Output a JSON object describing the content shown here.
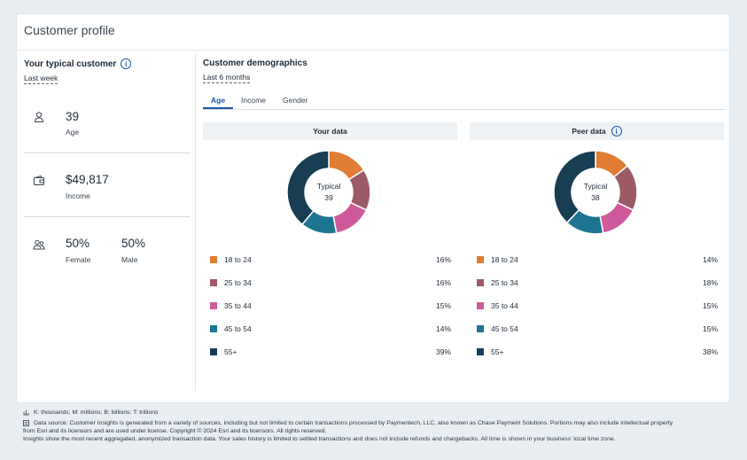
{
  "card": {
    "title": "Customer profile"
  },
  "typical_customer": {
    "title": "Your typical customer",
    "period": "Last week",
    "age": {
      "value": "39",
      "label": "Age",
      "icon": "person-icon"
    },
    "income": {
      "value": "$49,817",
      "label": "Income",
      "icon": "wallet-icon"
    },
    "gender": {
      "female_value": "50%",
      "female_label": "Female",
      "male_value": "50%",
      "male_label": "Male",
      "icon": "people-icon"
    }
  },
  "demographics": {
    "title": "Customer demographics",
    "period": "Last 6 months",
    "tabs": [
      {
        "label": "Age",
        "active": true
      },
      {
        "label": "Income",
        "active": false
      },
      {
        "label": "Gender",
        "active": false
      }
    ],
    "categories": [
      "18 to 24",
      "25 to 34",
      "35 to 44",
      "45 to 54",
      "55+"
    ],
    "colors": [
      "#e07c34",
      "#9c5a66",
      "#cf5a9b",
      "#1e7591",
      "#173e52"
    ],
    "your_data": {
      "title": "Your data",
      "center_title": "Typical",
      "center_value": "39",
      "values": [
        16,
        16,
        15,
        14,
        39
      ],
      "labels": [
        "16%",
        "16%",
        "15%",
        "14%",
        "39%"
      ]
    },
    "peer_data": {
      "title": "Peer data",
      "center_title": "Typical",
      "center_value": "38",
      "values": [
        14,
        18,
        15,
        15,
        38
      ],
      "labels": [
        "14%",
        "18%",
        "15%",
        "15%",
        "38%"
      ]
    }
  },
  "footer": {
    "abbreviations": "K: thousands; M: millions; B; billions; T: trillions",
    "source_1": "Data source: Customer Insights is generated from a variety of sources, including but not limited to certain transactions processed by Paymentech, LLC, also known as Chase Payment Solutions. Portions may also include intellectual property",
    "source_2": "from Esri and its licensors and are used under license. Copyright © 2024 Esri and its licensors. All rights reserved.",
    "source_3": "Insights show the most recent aggregated, anonymized transaction data. Your sales history is limited to settled transactions and does not include refunds and chargebacks. All time is shown in your business' local time zone."
  },
  "chart_data": [
    {
      "type": "pie",
      "title": "Your data",
      "categories": [
        "18 to 24",
        "25 to 34",
        "35 to 44",
        "45 to 54",
        "55+"
      ],
      "values": [
        16,
        16,
        15,
        14,
        39
      ]
    },
    {
      "type": "pie",
      "title": "Peer data",
      "categories": [
        "18 to 24",
        "25 to 34",
        "35 to 44",
        "45 to 54",
        "55+"
      ],
      "values": [
        14,
        18,
        15,
        15,
        38
      ]
    }
  ]
}
